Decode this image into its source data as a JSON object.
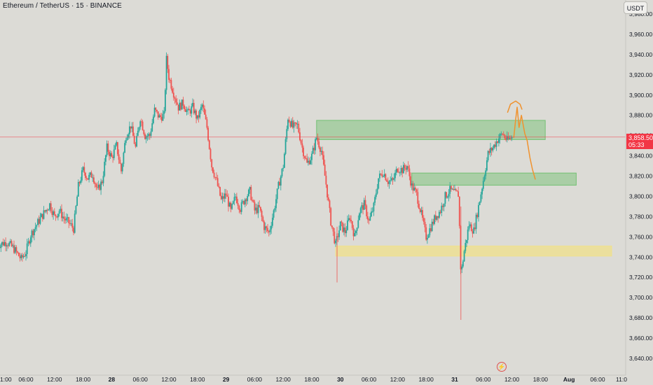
{
  "header": {
    "title": "Ethereum / TetherUS · 15 · BINANCE",
    "currency": "USDT"
  },
  "price_label": {
    "price": "3,858.50",
    "countdown": "05:33"
  },
  "colors": {
    "background": "#dcdbd6",
    "up": "#26a69a",
    "down": "#ef5350",
    "price_line": "#f23645",
    "zone_green": "#6cbf6c",
    "zone_yellow": "#f0e08a",
    "drawing": "#f0922e"
  },
  "icons": {
    "logo": "tradingview-logo-icon"
  },
  "chart_data": {
    "type": "candlestick",
    "title": "Ethereum / TetherUS · 15 · BINANCE",
    "ylim": [
      3630,
      3995
    ],
    "y_ticks": [
      3980,
      3960,
      3940,
      3920,
      3900,
      3880,
      3860,
      3840,
      3820,
      3800,
      3780,
      3760,
      3740,
      3720,
      3700,
      3680,
      3660,
      3640
    ],
    "y_tick_labels": [
      "3,980.00",
      "3,960.00",
      "3,940.00",
      "3,920.00",
      "3,900.00",
      "3,880.00",
      "3,860.00",
      "3,840.00",
      "3,820.00",
      "3,800.00",
      "3,780.00",
      "3,760.00",
      "3,740.00",
      "3,720.00",
      "3,700.00",
      "3,680.00",
      "3,660.00",
      "3,640.00"
    ],
    "x_time_range_hours": [
      -1,
      107
    ],
    "x_ticks": [
      {
        "label": "1:00",
        "hours": 0
      },
      {
        "label": "06:00",
        "hours": 5
      },
      {
        "label": "12:00",
        "hours": 11
      },
      {
        "label": "18:00",
        "hours": 17
      },
      {
        "label": "28",
        "hours": 23
      },
      {
        "label": "06:00",
        "hours": 29
      },
      {
        "label": "12:00",
        "hours": 35
      },
      {
        "label": "18:00",
        "hours": 41
      },
      {
        "label": "29",
        "hours": 47
      },
      {
        "label": "06:00",
        "hours": 53
      },
      {
        "label": "12:00",
        "hours": 59
      },
      {
        "label": "18:00",
        "hours": 65
      },
      {
        "label": "30",
        "hours": 71
      },
      {
        "label": "06:00",
        "hours": 77
      },
      {
        "label": "12:00",
        "hours": 83
      },
      {
        "label": "18:00",
        "hours": 89
      },
      {
        "label": "31",
        "hours": 95
      },
      {
        "label": "06:00",
        "hours": 101
      },
      {
        "label": "12:00",
        "hours": 107
      },
      {
        "label": "18:00",
        "hours": 113
      },
      {
        "label": "Aug",
        "hours": 119
      },
      {
        "label": "06:00",
        "hours": 125
      },
      {
        "label": "11:0",
        "hours": 130
      }
    ],
    "last_price": 3858.5,
    "zones": [
      {
        "kind": "supply",
        "color": "green",
        "from_hours": 66,
        "to_hours": 114,
        "low": 3856,
        "high": 3875
      },
      {
        "kind": "demand",
        "color": "green",
        "from_hours": 86,
        "to_hours": 120.5,
        "low": 3811,
        "high": 3823
      },
      {
        "kind": "demand",
        "color": "yellow",
        "from_hours": 70,
        "to_hours": 128,
        "low": 3741,
        "high": 3751
      }
    ],
    "close_path": [
      {
        "t": -1,
        "c": 3752
      },
      {
        "t": 1,
        "c": 3755
      },
      {
        "t": 2.5,
        "c": 3748
      },
      {
        "t": 4,
        "c": 3738
      },
      {
        "t": 5,
        "c": 3745
      },
      {
        "t": 6,
        "c": 3762
      },
      {
        "t": 7,
        "c": 3770
      },
      {
        "t": 8,
        "c": 3778
      },
      {
        "t": 9,
        "c": 3785
      },
      {
        "t": 10,
        "c": 3792
      },
      {
        "t": 11,
        "c": 3780
      },
      {
        "t": 12,
        "c": 3786
      },
      {
        "t": 13,
        "c": 3778
      },
      {
        "t": 14,
        "c": 3774
      },
      {
        "t": 15,
        "c": 3768
      },
      {
        "t": 16,
        "c": 3810
      },
      {
        "t": 17,
        "c": 3826
      },
      {
        "t": 18,
        "c": 3818
      },
      {
        "t": 19,
        "c": 3822
      },
      {
        "t": 20,
        "c": 3805
      },
      {
        "t": 21,
        "c": 3815
      },
      {
        "t": 22,
        "c": 3848
      },
      {
        "t": 23,
        "c": 3838
      },
      {
        "t": 24,
        "c": 3850
      },
      {
        "t": 25,
        "c": 3825
      },
      {
        "t": 26,
        "c": 3860
      },
      {
        "t": 27,
        "c": 3870
      },
      {
        "t": 28,
        "c": 3848
      },
      {
        "t": 29,
        "c": 3878
      },
      {
        "t": 30,
        "c": 3860
      },
      {
        "t": 31,
        "c": 3860
      },
      {
        "t": 32,
        "c": 3885
      },
      {
        "t": 33,
        "c": 3878
      },
      {
        "t": 34,
        "c": 3880
      },
      {
        "t": 34.5,
        "c": 3935
      },
      {
        "t": 35,
        "c": 3918
      },
      {
        "t": 36,
        "c": 3902
      },
      {
        "t": 37,
        "c": 3888
      },
      {
        "t": 38,
        "c": 3892
      },
      {
        "t": 39,
        "c": 3882
      },
      {
        "t": 40,
        "c": 3888
      },
      {
        "t": 41,
        "c": 3876
      },
      {
        "t": 42,
        "c": 3890
      },
      {
        "t": 43,
        "c": 3868
      },
      {
        "t": 44,
        "c": 3830
      },
      {
        "t": 45,
        "c": 3815
      },
      {
        "t": 46,
        "c": 3796
      },
      {
        "t": 47,
        "c": 3802
      },
      {
        "t": 48,
        "c": 3785
      },
      {
        "t": 49,
        "c": 3800
      },
      {
        "t": 50,
        "c": 3788
      },
      {
        "t": 51,
        "c": 3798
      },
      {
        "t": 52,
        "c": 3805
      },
      {
        "t": 53,
        "c": 3786
      },
      {
        "t": 54,
        "c": 3788
      },
      {
        "t": 55,
        "c": 3770
      },
      {
        "t": 56,
        "c": 3764
      },
      {
        "t": 57,
        "c": 3785
      },
      {
        "t": 58,
        "c": 3810
      },
      {
        "t": 59,
        "c": 3830
      },
      {
        "t": 60,
        "c": 3878
      },
      {
        "t": 61,
        "c": 3868
      },
      {
        "t": 62,
        "c": 3870
      },
      {
        "t": 63,
        "c": 3848
      },
      {
        "t": 64,
        "c": 3832
      },
      {
        "t": 65,
        "c": 3840
      },
      {
        "t": 66,
        "c": 3858
      },
      {
        "t": 67,
        "c": 3845
      },
      {
        "t": 68,
        "c": 3812
      },
      {
        "t": 69,
        "c": 3775
      },
      {
        "t": 70,
        "c": 3752
      },
      {
        "t": 71,
        "c": 3772
      },
      {
        "t": 72,
        "c": 3765
      },
      {
        "t": 73,
        "c": 3780
      },
      {
        "t": 74,
        "c": 3760
      },
      {
        "t": 75,
        "c": 3785
      },
      {
        "t": 76,
        "c": 3792
      },
      {
        "t": 77,
        "c": 3775
      },
      {
        "t": 78,
        "c": 3790
      },
      {
        "t": 79,
        "c": 3818
      },
      {
        "t": 80,
        "c": 3824
      },
      {
        "t": 81,
        "c": 3815
      },
      {
        "t": 82,
        "c": 3815
      },
      {
        "t": 83,
        "c": 3828
      },
      {
        "t": 84,
        "c": 3826
      },
      {
        "t": 85,
        "c": 3830
      },
      {
        "t": 86,
        "c": 3810
      },
      {
        "t": 87,
        "c": 3802
      },
      {
        "t": 88,
        "c": 3782
      },
      {
        "t": 89,
        "c": 3760
      },
      {
        "t": 90,
        "c": 3770
      },
      {
        "t": 91,
        "c": 3780
      },
      {
        "t": 92,
        "c": 3786
      },
      {
        "t": 93,
        "c": 3800
      },
      {
        "t": 94,
        "c": 3806
      },
      {
        "t": 95,
        "c": 3803
      },
      {
        "t": 95.8,
        "c": 3802
      },
      {
        "t": 96.3,
        "c": 3722
      },
      {
        "t": 97,
        "c": 3746
      },
      {
        "t": 98,
        "c": 3772
      },
      {
        "t": 99,
        "c": 3766
      },
      {
        "t": 100,
        "c": 3790
      },
      {
        "t": 101,
        "c": 3816
      },
      {
        "t": 102,
        "c": 3842
      },
      {
        "t": 103,
        "c": 3848
      },
      {
        "t": 104,
        "c": 3856
      },
      {
        "t": 105,
        "c": 3862
      },
      {
        "t": 106,
        "c": 3855
      },
      {
        "t": 107,
        "c": 3858.5
      }
    ],
    "projection_path": [
      {
        "t": 106.1,
        "p": 3883
      },
      {
        "t": 106.7,
        "p": 3891
      },
      {
        "t": 107.8,
        "p": 3894
      },
      {
        "t": 108.7,
        "p": 3891
      },
      {
        "t": 109.1,
        "p": 3886
      }
    ],
    "projection_path_2": [
      {
        "t": 107.4,
        "p": 3858
      },
      {
        "t": 107.8,
        "p": 3876
      },
      {
        "t": 108.1,
        "p": 3888
      },
      {
        "t": 108.5,
        "p": 3868
      },
      {
        "t": 109,
        "p": 3880
      },
      {
        "t": 109.7,
        "p": 3862
      },
      {
        "t": 110.2,
        "p": 3855
      },
      {
        "t": 110.8,
        "p": 3838
      },
      {
        "t": 111.3,
        "p": 3827
      },
      {
        "t": 111.9,
        "p": 3817
      }
    ]
  }
}
